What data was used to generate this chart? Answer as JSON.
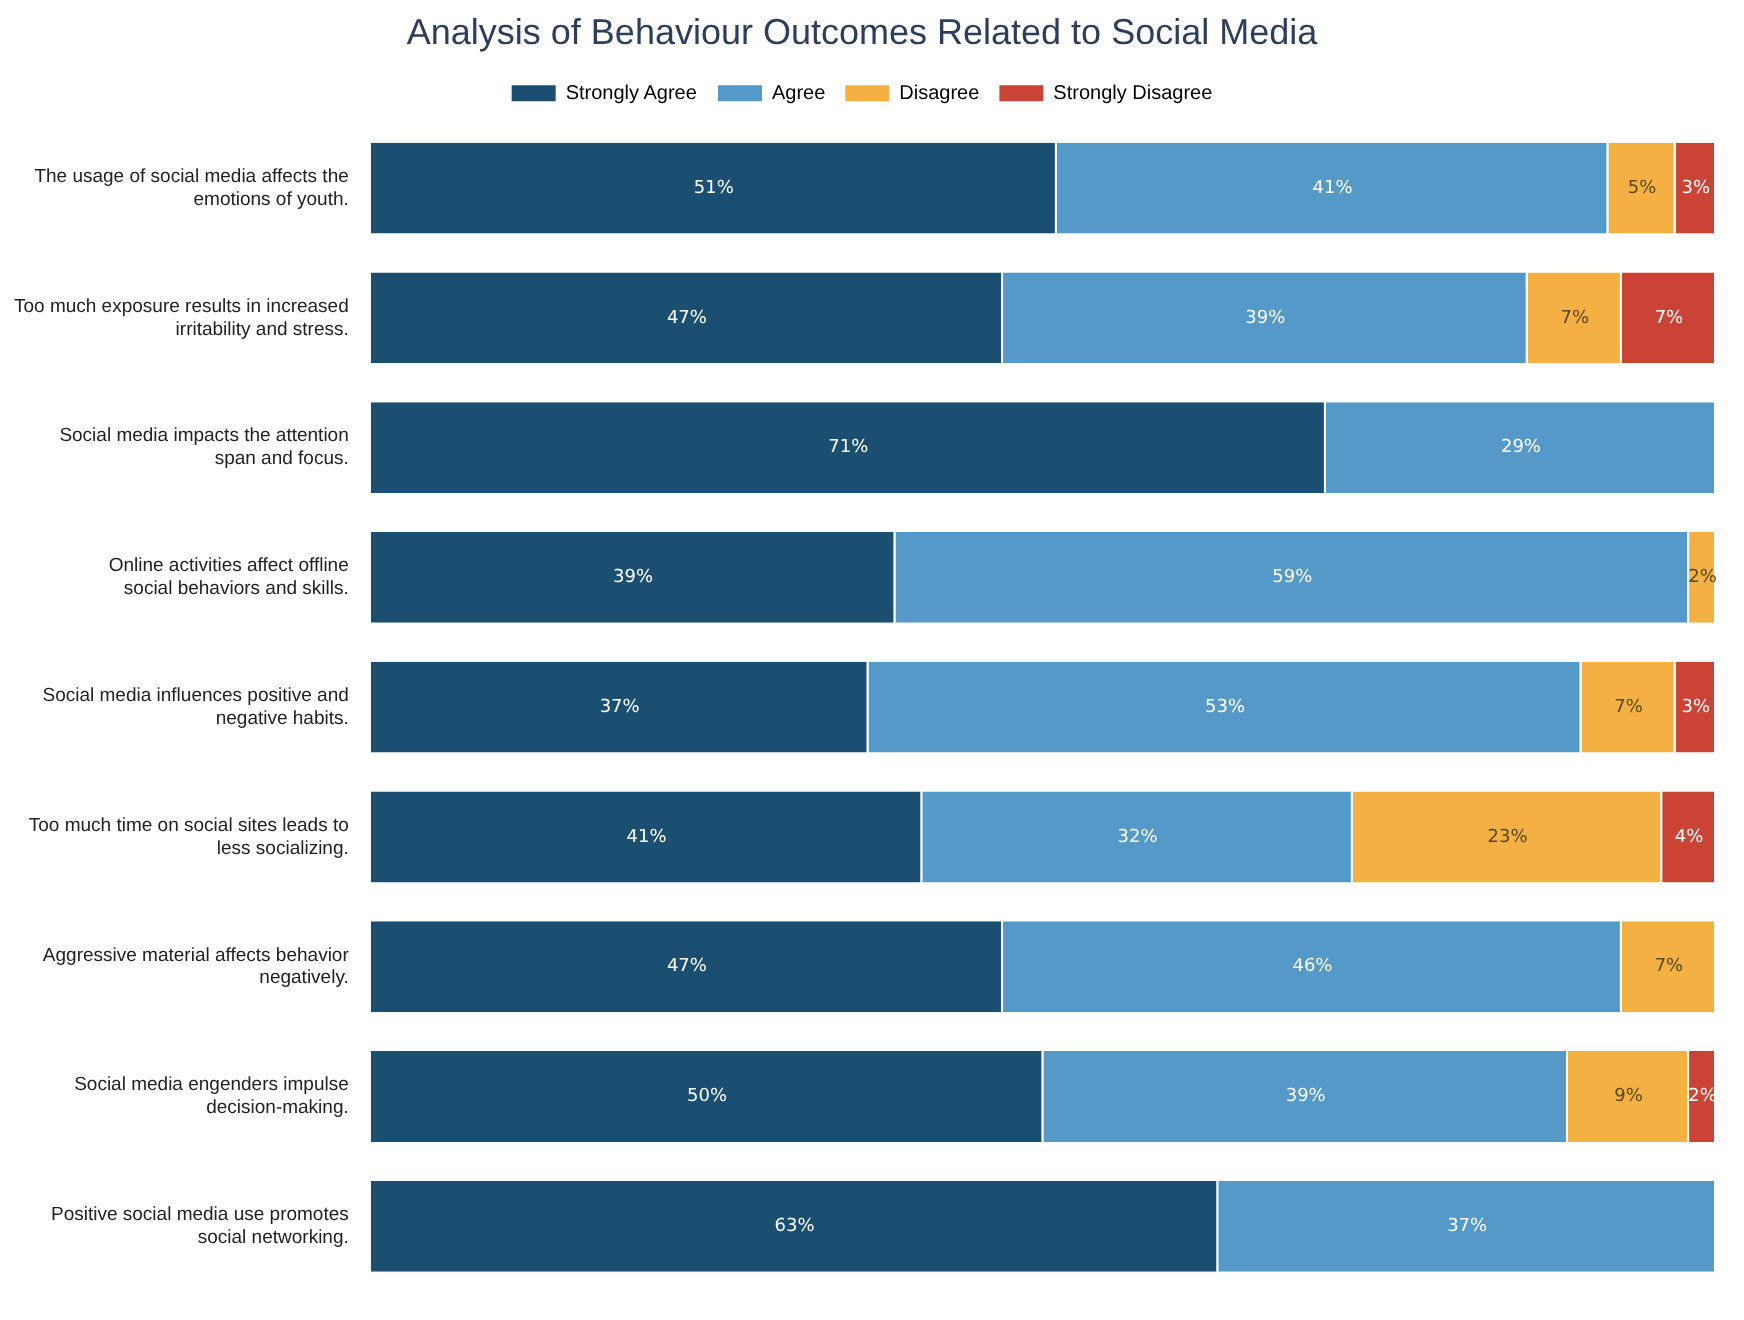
{
  "chart_data": {
    "type": "bar",
    "orientation": "horizontal",
    "stacked": true,
    "title": "Analysis of Behaviour Outcomes Related to Social Media",
    "categories": [
      "The usage of social media affects the emotions of youth.",
      "Too much exposure results in increased irritability and stress.",
      "Social media impacts the attention span and focus.",
      "Online activities affect offline social behaviors and skills.",
      "Social media influences positive and negative habits.",
      "Too much time on social sites leads to less socializing.",
      "Aggressive material affects behavior negatively.",
      "Social media engenders impulse decision-making.",
      "Positive social media use promotes social networking."
    ],
    "series": [
      {
        "name": "Strongly Agree",
        "color": "#1b4f72",
        "values": [
          51,
          47,
          71,
          39,
          37,
          41,
          47,
          50,
          63
        ],
        "value_labels": [
          "51%",
          "47%",
          "71%",
          "39%",
          "37%",
          "41%",
          "47%",
          "50%",
          "63%"
        ]
      },
      {
        "name": "Agree",
        "color": "#5499c7",
        "values": [
          41,
          39,
          29,
          59,
          53,
          32,
          46,
          39,
          37
        ],
        "value_labels": [
          "41%",
          "39%",
          "29%",
          "59%",
          "53%",
          "32%",
          "46%",
          "39%",
          "37%"
        ]
      },
      {
        "name": "Disagree",
        "color": "#f4b042",
        "values": [
          5,
          7,
          null,
          2,
          7,
          23,
          7,
          9,
          null
        ],
        "value_labels": [
          "5%",
          "7%",
          null,
          "2%",
          "7%",
          "23%",
          "7%",
          "9%",
          null
        ]
      },
      {
        "name": "Strongly Disagree",
        "color": "#cb4335",
        "values": [
          3,
          7,
          null,
          null,
          3,
          4,
          null,
          2,
          null
        ],
        "value_labels": [
          "3%",
          "7%",
          null,
          null,
          "3%",
          "4%",
          null,
          "2%",
          null
        ]
      }
    ],
    "xlim": [
      0,
      100
    ],
    "tick_labels": "y",
    "legend": "top"
  }
}
